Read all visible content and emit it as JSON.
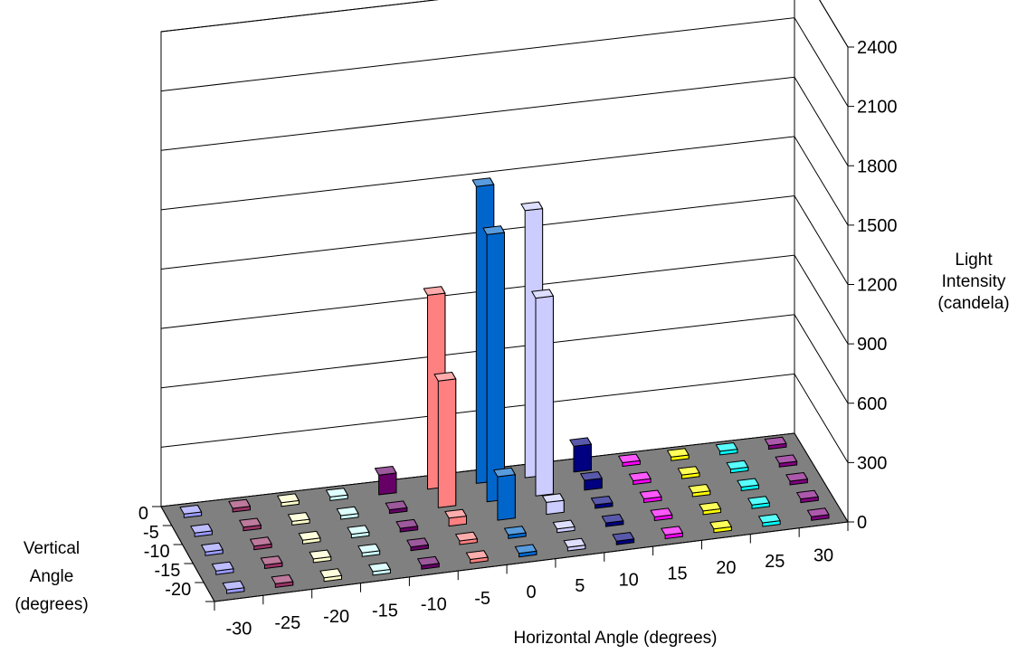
{
  "chart_data": {
    "type": "bar3d",
    "title": "",
    "zlabel": [
      "Light",
      "Intensity",
      "(candela)"
    ],
    "xlabel": "Horizontal Angle (degrees)",
    "ylabel": [
      "Vertical",
      "Angle",
      "(degrees)"
    ],
    "z_ticks": [
      "0",
      "300",
      "600",
      "900",
      "1200",
      "1500",
      "1800",
      "2100",
      "2400"
    ],
    "zlim": [
      0,
      2400
    ],
    "grid": true,
    "floor_color": "#808080",
    "horizontal_angles": [
      "-30",
      "-25",
      "-20",
      "-15",
      "-10",
      "-5",
      "0",
      "5",
      "10",
      "15",
      "20",
      "25",
      "30"
    ],
    "vertical_angles": [
      "0",
      "-5",
      "-10",
      "-15",
      "-20"
    ],
    "series": [
      {
        "color": "#9999FF",
        "values": [
          0,
          0,
          0,
          0,
          0
        ]
      },
      {
        "color": "#993366",
        "values": [
          0,
          0,
          0,
          0,
          0
        ]
      },
      {
        "color": "#FFFFCC",
        "values": [
          0,
          0,
          0,
          0,
          0
        ]
      },
      {
        "color": "#CCFFFF",
        "values": [
          0,
          0,
          0,
          0,
          0
        ]
      },
      {
        "color": "#660066",
        "values": [
          100,
          0,
          0,
          0,
          0
        ]
      },
      {
        "color": "#FF8080",
        "values": [
          980,
          640,
          40,
          0,
          0
        ]
      },
      {
        "color": "#0066CC",
        "values": [
          1500,
          1350,
          220,
          0,
          0
        ]
      },
      {
        "color": "#CCCCFF",
        "values": [
          1350,
          1000,
          60,
          0,
          0
        ]
      },
      {
        "color": "#000080",
        "values": [
          130,
          50,
          0,
          0,
          0
        ]
      },
      {
        "color": "#FF00FF",
        "values": [
          0,
          0,
          0,
          0,
          0
        ]
      },
      {
        "color": "#FFFF00",
        "values": [
          0,
          0,
          0,
          0,
          0
        ]
      },
      {
        "color": "#00FFFF",
        "values": [
          0,
          0,
          0,
          0,
          0
        ]
      },
      {
        "color": "#800080",
        "values": [
          0,
          0,
          0,
          0,
          0
        ]
      }
    ]
  }
}
